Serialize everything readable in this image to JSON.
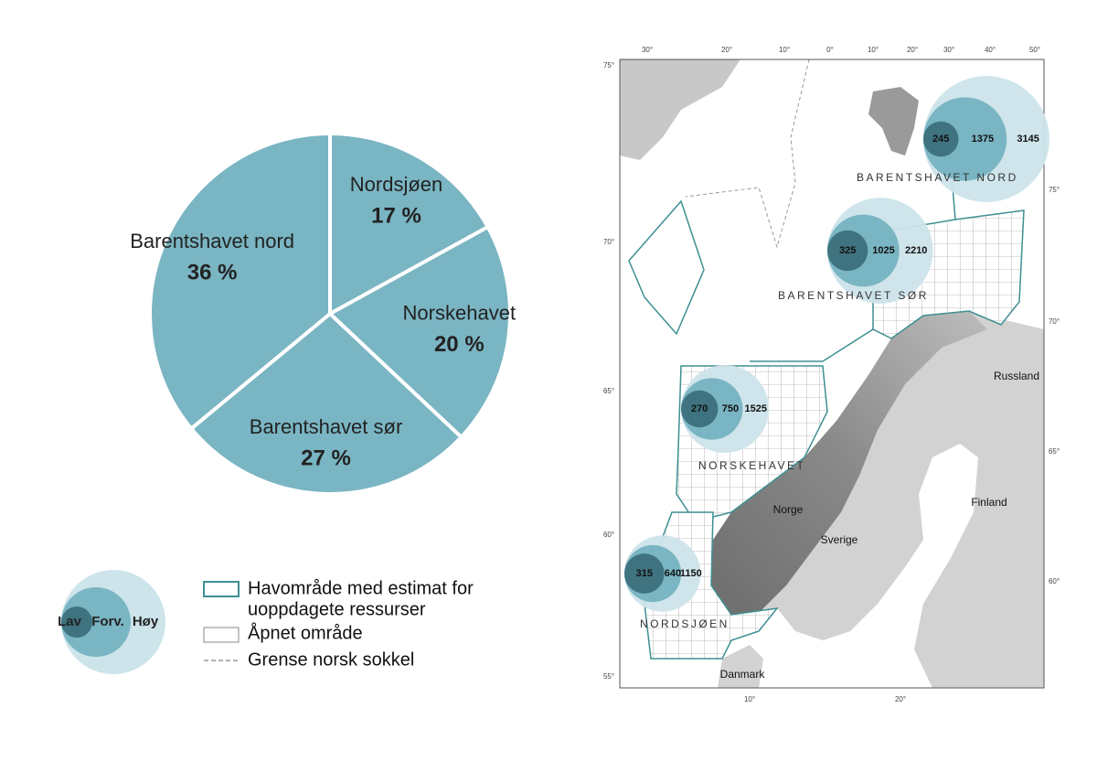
{
  "chart_data": {
    "type": "pie",
    "categories": [
      "Nordsjøen",
      "Norskehavet",
      "Barentshavet sør",
      "Barentshavet nord"
    ],
    "values": [
      17,
      20,
      27,
      36
    ],
    "value_labels": [
      "17 %",
      "20 %",
      "27 %",
      "36 %"
    ],
    "color": "#7ab5c3"
  },
  "map": {
    "regions": [
      {
        "name": "BARENTSHAVET NORD",
        "low": 245,
        "expected": 1375,
        "high": 3145
      },
      {
        "name": "BARENTSHAVET SØR",
        "low": 325,
        "expected": 1025,
        "high": 2210
      },
      {
        "name": "NORSKEHAVET",
        "low": 270,
        "expected": 750,
        "high": 1525
      },
      {
        "name": "NORDSJØEN",
        "low": 315,
        "expected": 640,
        "high": 1150
      }
    ],
    "countries": [
      "Russland",
      "Finland",
      "Norge",
      "Sverige",
      "Danmark"
    ],
    "top_ticks": [
      "30°",
      "20°",
      "10°",
      "0°",
      "10°",
      "20°",
      "30°",
      "40°",
      "50°"
    ],
    "left_ticks": [
      "75°",
      "70°",
      "65°",
      "60°",
      "55°"
    ],
    "right_ticks": [
      "75°",
      "70°",
      "65°",
      "60°"
    ],
    "bottom_ticks": [
      "10°",
      "20°"
    ]
  },
  "legend": {
    "bubble": [
      "Lav",
      "Forv.",
      "Høy"
    ],
    "items": [
      [
        "Havområde med estimat for",
        "uoppdagete ressurser"
      ],
      [
        "Åpnet område"
      ],
      [
        "Grense norsk sokkel"
      ]
    ]
  }
}
